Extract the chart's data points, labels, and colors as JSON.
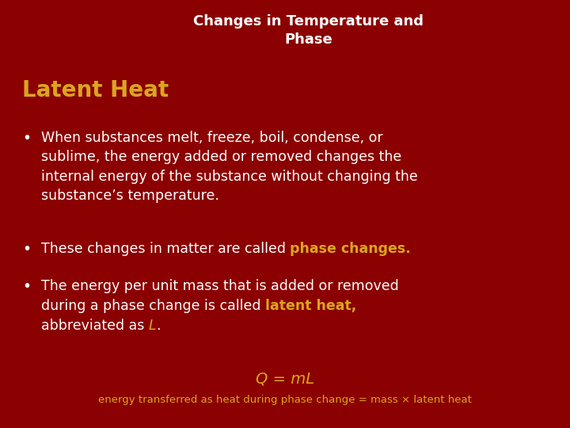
{
  "background_color": "#8B0000",
  "title_line1": "Changes in Temperature and",
  "title_line2": "Phase",
  "title_color": "#FFFFFF",
  "title_fontsize": 13,
  "title_bold": true,
  "section_title": "Latent Heat",
  "section_title_color": "#DAA520",
  "section_title_fontsize": 20,
  "section_title_bold": true,
  "bullet_color": "#FFFFFF",
  "highlight_color": "#DAA520",
  "bullet_fontsize": 12.5,
  "formula_text": "Q = mL",
  "formula_color": "#DAA520",
  "formula_fontsize": 14,
  "caption_text": "energy transferred as heat during phase change = mass × latent heat",
  "caption_color": "#DAA520",
  "caption_fontsize": 9.5
}
